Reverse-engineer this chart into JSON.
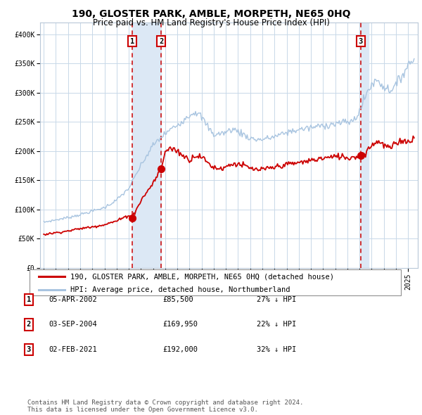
{
  "title": "190, GLOSTER PARK, AMBLE, MORPETH, NE65 0HQ",
  "subtitle": "Price paid vs. HM Land Registry's House Price Index (HPI)",
  "ylim": [
    0,
    420000
  ],
  "yticks": [
    0,
    50000,
    100000,
    150000,
    200000,
    250000,
    300000,
    350000,
    400000
  ],
  "ytick_labels": [
    "£0",
    "£50K",
    "£100K",
    "£150K",
    "£200K",
    "£250K",
    "£300K",
    "£350K",
    "£400K"
  ],
  "hpi_color": "#a8c4e0",
  "property_color": "#cc0000",
  "marker_color": "#cc0000",
  "bg_color": "#ffffff",
  "grid_color": "#c8d8e8",
  "dline_color": "#cc0000",
  "highlight_color": "#dce8f5",
  "transactions": [
    {
      "date_label": "05-APR-2002",
      "date_num": 2002.27,
      "price": 85500,
      "pct": "27% ↓ HPI",
      "num": "1"
    },
    {
      "date_label": "03-SEP-2004",
      "date_num": 2004.67,
      "price": 169950,
      "pct": "22% ↓ HPI",
      "num": "2"
    },
    {
      "date_label": "02-FEB-2021",
      "date_num": 2021.09,
      "price": 192000,
      "pct": "32% ↓ HPI",
      "num": "3"
    }
  ],
  "legend_property": "190, GLOSTER PARK, AMBLE, MORPETH, NE65 0HQ (detached house)",
  "legend_hpi": "HPI: Average price, detached house, Northumberland",
  "footer": "Contains HM Land Registry data © Crown copyright and database right 2024.\nThis data is licensed under the Open Government Licence v3.0.",
  "title_fontsize": 10,
  "subtitle_fontsize": 8.5,
  "tick_fontsize": 7,
  "legend_fontsize": 7.5,
  "table_fontsize": 7.5,
  "footer_fontsize": 6.5,
  "xmin": 1994.7,
  "xmax": 2025.8,
  "hpi_anchors": [
    [
      1995.0,
      78000
    ],
    [
      1996.0,
      82000
    ],
    [
      1997.0,
      86000
    ],
    [
      1998.0,
      91000
    ],
    [
      1999.0,
      97000
    ],
    [
      2000.0,
      103000
    ],
    [
      2001.0,
      116000
    ],
    [
      2002.0,
      136000
    ],
    [
      2003.0,
      175000
    ],
    [
      2004.0,
      210000
    ],
    [
      2005.0,
      230000
    ],
    [
      2006.0,
      245000
    ],
    [
      2007.0,
      262000
    ],
    [
      2007.5,
      268000
    ],
    [
      2008.0,
      258000
    ],
    [
      2008.5,
      242000
    ],
    [
      2009.0,
      228000
    ],
    [
      2009.5,
      230000
    ],
    [
      2010.0,
      232000
    ],
    [
      2010.5,
      238000
    ],
    [
      2011.0,
      234000
    ],
    [
      2011.5,
      228000
    ],
    [
      2012.0,
      222000
    ],
    [
      2012.5,
      220000
    ],
    [
      2013.0,
      220000
    ],
    [
      2013.5,
      222000
    ],
    [
      2014.0,
      225000
    ],
    [
      2014.5,
      228000
    ],
    [
      2015.0,
      232000
    ],
    [
      2016.0,
      237000
    ],
    [
      2017.0,
      240000
    ],
    [
      2018.0,
      244000
    ],
    [
      2019.0,
      247000
    ],
    [
      2020.0,
      250000
    ],
    [
      2020.5,
      252000
    ],
    [
      2021.0,
      268000
    ],
    [
      2021.5,
      295000
    ],
    [
      2022.0,
      315000
    ],
    [
      2022.5,
      322000
    ],
    [
      2023.0,
      310000
    ],
    [
      2023.5,
      305000
    ],
    [
      2024.0,
      312000
    ],
    [
      2024.5,
      330000
    ],
    [
      2025.0,
      348000
    ],
    [
      2025.5,
      358000
    ]
  ],
  "prop_anchors": [
    [
      1995.0,
      57000
    ],
    [
      1996.0,
      60000
    ],
    [
      1997.0,
      63000
    ],
    [
      1998.0,
      67000
    ],
    [
      1999.0,
      70000
    ],
    [
      2000.0,
      74000
    ],
    [
      2001.0,
      80000
    ],
    [
      2002.0,
      90000
    ],
    [
      2002.27,
      85500
    ],
    [
      2002.5,
      95000
    ],
    [
      2003.0,
      115000
    ],
    [
      2003.5,
      130000
    ],
    [
      2004.0,
      145000
    ],
    [
      2004.67,
      169950
    ],
    [
      2005.0,
      200000
    ],
    [
      2005.5,
      205000
    ],
    [
      2006.0,
      200000
    ],
    [
      2006.5,
      192000
    ],
    [
      2007.0,
      185000
    ],
    [
      2007.5,
      193000
    ],
    [
      2008.0,
      190000
    ],
    [
      2008.5,
      180000
    ],
    [
      2009.0,
      172000
    ],
    [
      2009.5,
      170000
    ],
    [
      2010.0,
      173000
    ],
    [
      2010.5,
      178000
    ],
    [
      2011.0,
      178000
    ],
    [
      2011.5,
      175000
    ],
    [
      2012.0,
      170000
    ],
    [
      2012.5,
      168000
    ],
    [
      2013.0,
      168000
    ],
    [
      2013.5,
      170000
    ],
    [
      2014.0,
      172000
    ],
    [
      2014.5,
      175000
    ],
    [
      2015.0,
      177000
    ],
    [
      2016.0,
      180000
    ],
    [
      2017.0,
      184000
    ],
    [
      2018.0,
      188000
    ],
    [
      2019.0,
      190000
    ],
    [
      2019.5,
      192000
    ],
    [
      2020.0,
      188000
    ],
    [
      2020.5,
      190000
    ],
    [
      2021.0,
      192000
    ],
    [
      2021.09,
      192000
    ],
    [
      2021.5,
      198000
    ],
    [
      2022.0,
      210000
    ],
    [
      2022.5,
      218000
    ],
    [
      2023.0,
      210000
    ],
    [
      2023.5,
      205000
    ],
    [
      2024.0,
      212000
    ],
    [
      2024.5,
      220000
    ],
    [
      2025.0,
      215000
    ],
    [
      2025.5,
      225000
    ]
  ]
}
